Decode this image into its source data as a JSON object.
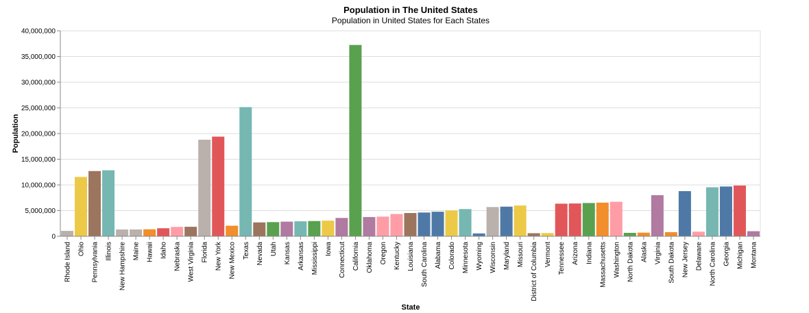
{
  "chart_data": {
    "type": "bar",
    "title": "Population in The United States",
    "subtitle": "Population in United States for Each States",
    "xlabel": "State",
    "ylabel": "Population",
    "ylim": [
      0,
      40000000
    ],
    "yticks": [
      0,
      5000000,
      10000000,
      15000000,
      20000000,
      25000000,
      30000000,
      35000000,
      40000000
    ],
    "ytick_labels": [
      "0",
      "5,000,000",
      "10,000,000",
      "15,000,000",
      "20,000,000",
      "25,000,000",
      "30,000,000",
      "35,000,000",
      "40,000,000"
    ],
    "grid": true,
    "categories": [
      "Rhode Island",
      "Ohio",
      "Pennsylvania",
      "Illinois",
      "New Hampshire",
      "Maine",
      "Hawaii",
      "Idaho",
      "Nebraska",
      "West Virginia",
      "Florida",
      "New York",
      "New Mexico",
      "Texas",
      "Nevada",
      "Utah",
      "Kansas",
      "Arkansas",
      "Mississippi",
      "Iowa",
      "Connecticut",
      "California",
      "Oklahoma",
      "Oregon",
      "Kentucky",
      "Louisiana",
      "South Carolina",
      "Alabama",
      "Colorado",
      "Minnesota",
      "Wyoming",
      "Wisconsin",
      "Maryland",
      "Missouri",
      "District of Columbia",
      "Vermont",
      "Tennessee",
      "Arizona",
      "Indiana",
      "Massachusetts",
      "Washington",
      "North Dakota",
      "Alaska",
      "Virginia",
      "South Dakota",
      "New Jersey",
      "Delaware",
      "North Carolina",
      "Georgia",
      "Michigan",
      "Montana"
    ],
    "values": [
      1050000,
      11550000,
      12700000,
      12850000,
      1320000,
      1330000,
      1360000,
      1570000,
      1830000,
      1850000,
      18800000,
      19400000,
      2060000,
      25150000,
      2700000,
      2760000,
      2850000,
      2920000,
      2970000,
      3050000,
      3570000,
      37250000,
      3750000,
      3830000,
      4340000,
      4530000,
      4630000,
      4780000,
      5030000,
      5300000,
      560000,
      5690000,
      5770000,
      5990000,
      600000,
      630000,
      6350000,
      6390000,
      6480000,
      6550000,
      6720000,
      670000,
      710000,
      8000000,
      810000,
      8790000,
      900000,
      9540000,
      9690000,
      9880000,
      990000
    ],
    "colors": [
      "#bab0ac",
      "#edc948",
      "#9c755f",
      "#76b7b2",
      "#bab0ac",
      "#bab0ac",
      "#f28e2b",
      "#e15759",
      "#ff9da7",
      "#9c755f",
      "#bab0ac",
      "#e15759",
      "#f28e2b",
      "#76b7b2",
      "#9c755f",
      "#59a14f",
      "#b07aa1",
      "#76b7b2",
      "#59a14f",
      "#edc948",
      "#b07aa1",
      "#59a14f",
      "#b07aa1",
      "#ff9da7",
      "#ff9da7",
      "#9c755f",
      "#4e79a7",
      "#4e79a7",
      "#edc948",
      "#76b7b2",
      "#4e79a7",
      "#bab0ac",
      "#4e79a7",
      "#edc948",
      "#9c755f",
      "#edc948",
      "#e15759",
      "#e15759",
      "#59a14f",
      "#f28e2b",
      "#ff9da7",
      "#59a14f",
      "#f28e2b",
      "#b07aa1",
      "#f28e2b",
      "#4e79a7",
      "#ff9da7",
      "#76b7b2",
      "#4e79a7",
      "#e15759",
      "#b07aa1"
    ]
  }
}
